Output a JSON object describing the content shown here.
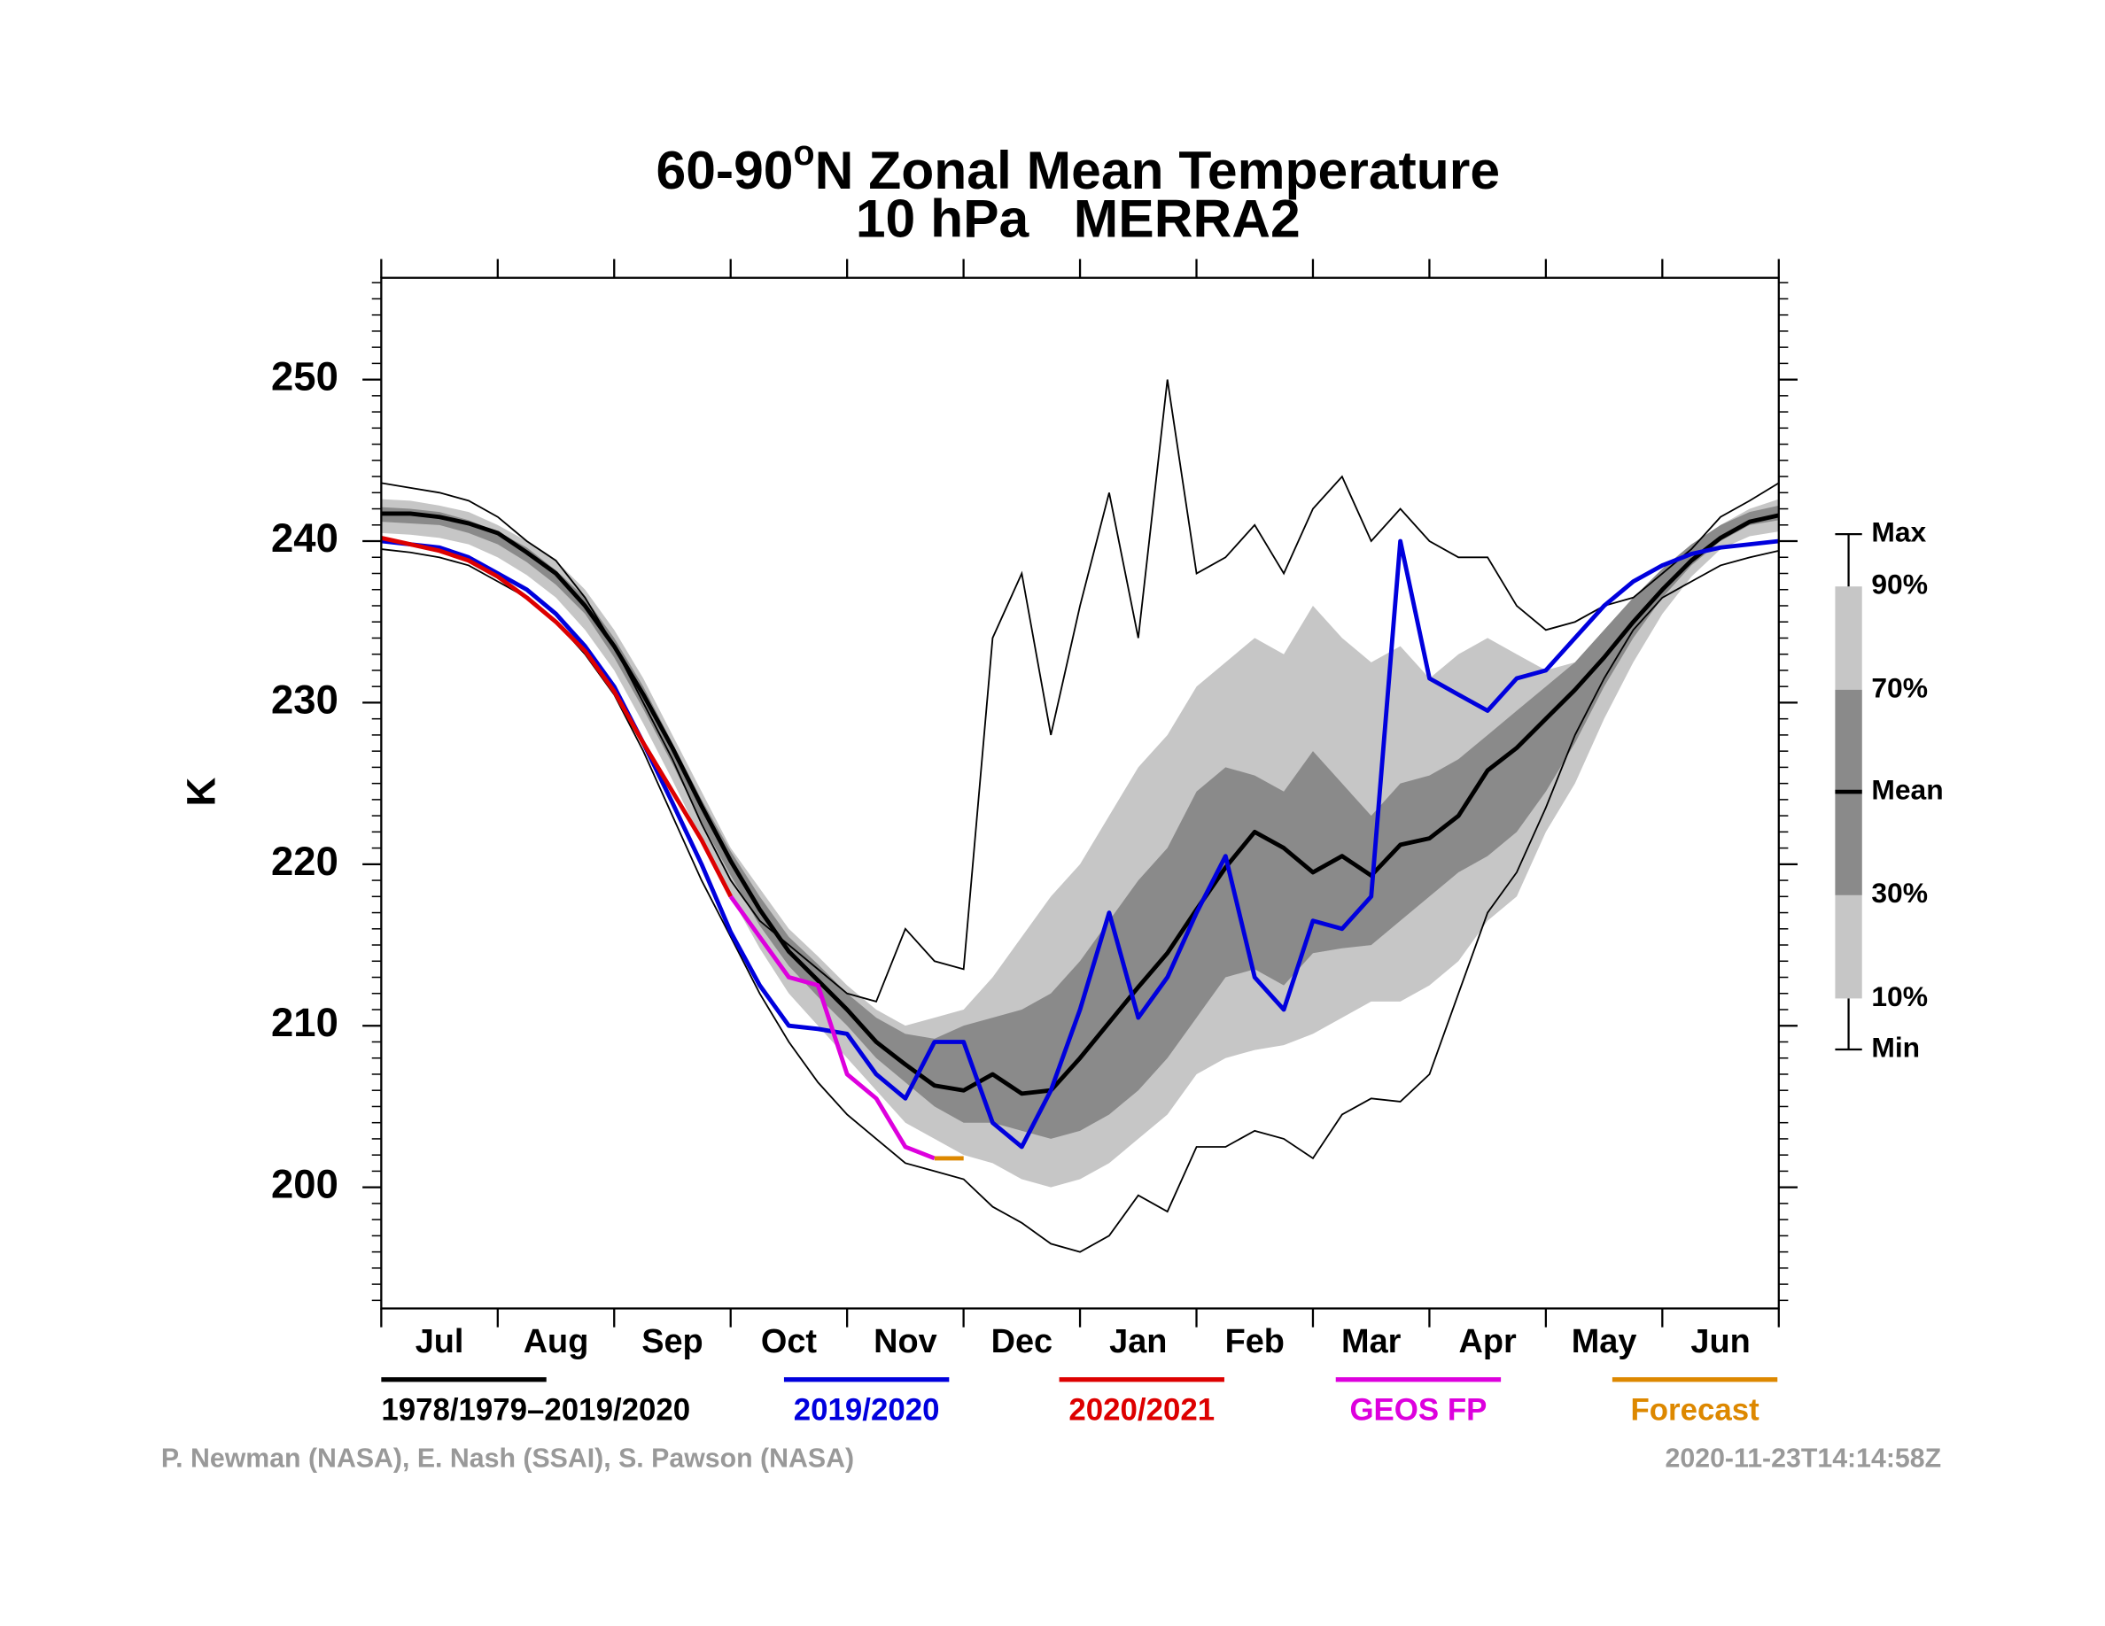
{
  "chart_data": {
    "type": "line",
    "title": {
      "prefix": "60-90",
      "superscript": "o",
      "suffix": "N Zonal Mean Temperature"
    },
    "subtitle": "10 hPa   MERRA2",
    "ylabel": "K",
    "categories": [
      "Jul",
      "Aug",
      "Sep",
      "Oct",
      "Nov",
      "Dec",
      "Jan",
      "Feb",
      "Mar",
      "Apr",
      "May",
      "Jun"
    ],
    "xlim": [
      0,
      12
    ],
    "ylim": [
      192.5,
      256.3
    ],
    "yticks": [
      200,
      210,
      220,
      230,
      240,
      250
    ],
    "y_minor_ticks": [
      193,
      194,
      195,
      196,
      197,
      198,
      199,
      201,
      202,
      203,
      204,
      205,
      206,
      207,
      208,
      209,
      211,
      212,
      213,
      214,
      215,
      216,
      217,
      218,
      219,
      221,
      222,
      223,
      224,
      225,
      226,
      227,
      228,
      229,
      231,
      232,
      233,
      234,
      235,
      236,
      237,
      238,
      239,
      241,
      242,
      243,
      244,
      245,
      246,
      247,
      248,
      249,
      251,
      252,
      253,
      254,
      255,
      256
    ],
    "x": [
      0,
      0.25,
      0.5,
      0.75,
      1,
      1.25,
      1.5,
      1.75,
      2,
      2.25,
      2.5,
      2.75,
      3,
      3.25,
      3.5,
      3.75,
      4,
      4.25,
      4.5,
      4.75,
      5,
      5.25,
      5.5,
      5.75,
      6,
      6.25,
      6.5,
      6.75,
      7,
      7.25,
      7.5,
      7.75,
      8,
      8.25,
      8.5,
      8.75,
      9,
      9.25,
      9.5,
      9.75,
      10,
      10.25,
      10.5,
      10.75,
      11,
      11.25,
      11.5,
      11.75,
      12
    ],
    "envelope": [
      {
        "name": "Max",
        "values": [
          243.6,
          243.3,
          243,
          242.5,
          241.5,
          240,
          238.8,
          236.5,
          233.5,
          230,
          226.5,
          222.5,
          219,
          216.5,
          215,
          213.5,
          212,
          211.5,
          216,
          214,
          213.5,
          234,
          238,
          228,
          236,
          243,
          234,
          250,
          238,
          239,
          241,
          238,
          242,
          244,
          240,
          242,
          240,
          239,
          239,
          236,
          234.5,
          235,
          236,
          236.5,
          238,
          239.5,
          241.5,
          242.5,
          243.6
        ]
      },
      {
        "name": "90%",
        "values": [
          242.6,
          242.5,
          242.2,
          241.8,
          241,
          240,
          238.8,
          237,
          234.5,
          231.5,
          228,
          224.5,
          221,
          218.5,
          216,
          214.3,
          212.5,
          211,
          210,
          210.5,
          211,
          213,
          215.5,
          218,
          220,
          223,
          226,
          228,
          231,
          232.5,
          234,
          233,
          236,
          234,
          232.5,
          233.5,
          231.5,
          233,
          234,
          233,
          232,
          232.5,
          233.5,
          235,
          237.5,
          239.5,
          241,
          242,
          242.6
        ]
      },
      {
        "name": "70%",
        "values": [
          242.1,
          242,
          241.8,
          241.3,
          240.6,
          239.6,
          238.2,
          236.5,
          234,
          231,
          227.5,
          224,
          220.8,
          218,
          215.5,
          213.8,
          212,
          210.5,
          209.5,
          209.2,
          210,
          210.5,
          211,
          212,
          214,
          216.5,
          219,
          221,
          224.5,
          226,
          225.5,
          224.5,
          227,
          225,
          223,
          225,
          225.5,
          226.5,
          228,
          229.5,
          231,
          232.5,
          234.5,
          236.5,
          238.3,
          239.8,
          241,
          241.8,
          242.2
        ]
      },
      {
        "name": "30%",
        "values": [
          241.2,
          241.1,
          241,
          240.5,
          239.8,
          238.7,
          237.3,
          235.5,
          232.8,
          229.6,
          226.2,
          222.6,
          219.3,
          216.2,
          213.7,
          211.8,
          210,
          208,
          206.5,
          205,
          204,
          204,
          203.5,
          203,
          203.5,
          204.5,
          206,
          208,
          210.5,
          213,
          213.5,
          212.5,
          214.5,
          214.8,
          215,
          216.5,
          218,
          219.5,
          220.5,
          222,
          224.5,
          227.5,
          231,
          234,
          236.5,
          238.5,
          240,
          241,
          241.3
        ]
      },
      {
        "name": "10%",
        "values": [
          240.5,
          240.4,
          240.2,
          239.8,
          239,
          237.9,
          236.5,
          234.5,
          232,
          228.7,
          225.2,
          221.5,
          218,
          214.8,
          212,
          210,
          208,
          206,
          204,
          203,
          202,
          201.5,
          200.5,
          200,
          200.5,
          201.5,
          203,
          204.5,
          207,
          208,
          208.5,
          208.8,
          209.5,
          210.5,
          211.5,
          211.5,
          212.5,
          214,
          216.5,
          218,
          222,
          225,
          229,
          232.5,
          235.5,
          237.8,
          239.5,
          240.3,
          240.6
        ]
      },
      {
        "name": "Min",
        "values": [
          239.5,
          239.3,
          239,
          238.5,
          237.5,
          236.5,
          235,
          233,
          230.5,
          227,
          223,
          219,
          215.5,
          212,
          209,
          206.5,
          204.5,
          203,
          201.5,
          201,
          200.5,
          198.8,
          197.8,
          196.5,
          196,
          197,
          199.5,
          198.5,
          202.5,
          202.5,
          203.5,
          203,
          201.8,
          204.5,
          205.5,
          205.3,
          207,
          212,
          217,
          219.5,
          223.5,
          228,
          231.5,
          234.5,
          236.5,
          237.5,
          238.5,
          239,
          239.4
        ]
      }
    ],
    "band_colors": {
      "outer": "#c6c6c6",
      "inner": "#8a8a8a"
    },
    "series": [
      {
        "name": "1978/1979–2019/2020",
        "key_label": "Mean",
        "color": "#000000",
        "values": [
          241.7,
          241.7,
          241.5,
          241.1,
          240.5,
          239.3,
          238,
          236,
          233.5,
          230.5,
          227.2,
          223.6,
          220.2,
          217.2,
          214.6,
          212.8,
          211,
          209,
          207.6,
          206.3,
          206,
          207,
          205.8,
          206,
          208,
          210.2,
          212.4,
          214.5,
          217.2,
          219.8,
          222,
          221,
          219.5,
          220.5,
          219.3,
          221.2,
          221.6,
          223,
          225.8,
          227.2,
          229,
          230.8,
          232.8,
          235,
          237,
          238.8,
          240.2,
          241.2,
          241.6
        ]
      },
      {
        "name": "2019/2020",
        "color": "#0000dd",
        "values": [
          240,
          239.8,
          239.6,
          239,
          238,
          237,
          235.5,
          233.5,
          231,
          227.5,
          223.8,
          220,
          215.8,
          212.5,
          210,
          209.8,
          209.5,
          207,
          205.5,
          209,
          209,
          204,
          202.5,
          206,
          211,
          217,
          210.5,
          213,
          217,
          220.5,
          213,
          211,
          216.5,
          216,
          218,
          240,
          231.5,
          230.5,
          229.5,
          231.5,
          232,
          234,
          236,
          237.5,
          238.5,
          239.2,
          239.6,
          239.8,
          240
        ]
      },
      {
        "name": "2020/2021",
        "color": "#dd0000",
        "values": [
          240.2,
          239.8,
          239.4,
          238.8,
          237.8,
          236.5,
          235,
          233.2,
          230.7,
          227.5,
          224.5,
          221.5,
          218,
          null,
          null,
          null,
          null,
          null,
          null,
          null,
          null,
          null,
          null,
          null,
          null,
          null,
          null,
          null,
          null,
          null,
          null,
          null,
          null,
          null,
          null,
          null,
          null,
          null,
          null,
          null,
          null,
          null,
          null,
          null,
          null,
          null,
          null,
          null,
          null
        ]
      },
      {
        "name": "GEOS FP",
        "color": "#dd00dd",
        "values": [
          null,
          null,
          null,
          null,
          null,
          null,
          null,
          null,
          null,
          null,
          null,
          null,
          218,
          215.5,
          213,
          212.5,
          207,
          205.5,
          202.5,
          201.8,
          null,
          null,
          null,
          null,
          null,
          null,
          null,
          null,
          null,
          null,
          null,
          null,
          null,
          null,
          null,
          null,
          null,
          null,
          null,
          null,
          null,
          null,
          null,
          null,
          null,
          null,
          null,
          null,
          null
        ]
      },
      {
        "name": "Forecast",
        "color": "#dd8800",
        "values": [
          null,
          null,
          null,
          null,
          null,
          null,
          null,
          null,
          null,
          null,
          null,
          null,
          null,
          null,
          null,
          null,
          null,
          null,
          null,
          201.8,
          201.8,
          null,
          null,
          null,
          null,
          null,
          null,
          null,
          null,
          null,
          null,
          null,
          null,
          null,
          null,
          null,
          null,
          null,
          null,
          null,
          null,
          null,
          null,
          null,
          null,
          null,
          null,
          null,
          null
        ]
      }
    ],
    "credit": "P. Newman (NASA), E. Nash (SSAI), S. Pawson (NASA)",
    "timestamp": "2020-11-23T14:14:58Z"
  }
}
